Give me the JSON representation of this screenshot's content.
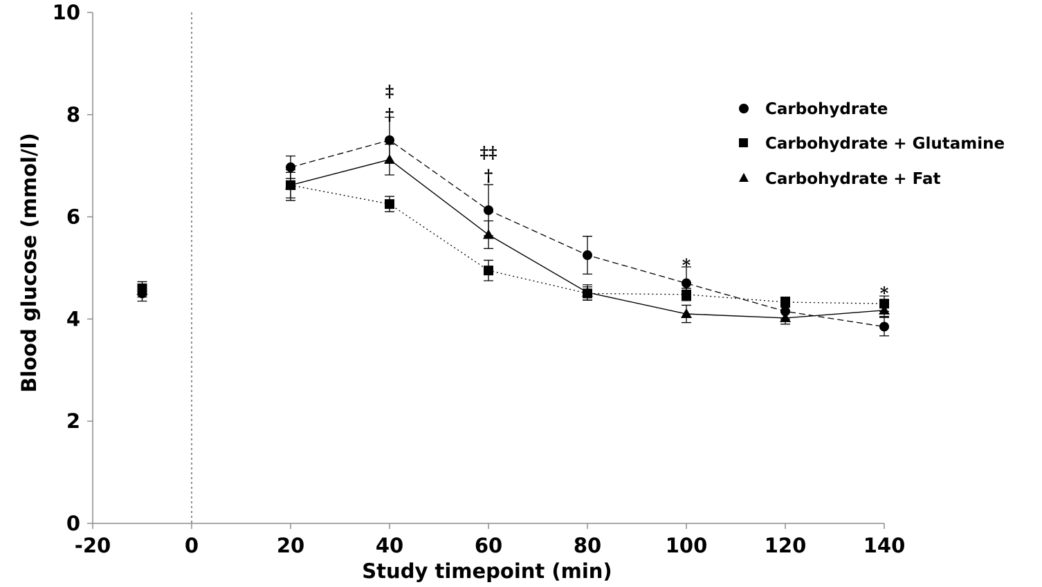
{
  "chart_data": {
    "type": "line",
    "xlabel": "Study timepoint (min)",
    "ylabel": "Blood glucose (mmol/l)",
    "xlim": [
      -20,
      140
    ],
    "ylim": [
      0,
      10
    ],
    "xticks": [
      -20,
      0,
      20,
      40,
      60,
      80,
      100,
      120,
      140
    ],
    "yticks": [
      0,
      2,
      4,
      6,
      8,
      10
    ],
    "reference_line_x": 0,
    "grid": false,
    "legend_position": "top-right",
    "series": [
      {
        "name": "Carbohydrate",
        "marker": "circle",
        "line": "dashed",
        "points": [
          {
            "x": -10,
            "y": 4.5,
            "err": 0.15,
            "connected": false
          },
          {
            "x": 20,
            "y": 6.97,
            "err": 0.22,
            "connected": true
          },
          {
            "x": 40,
            "y": 7.5,
            "err": 0.45,
            "connected": true
          },
          {
            "x": 60,
            "y": 6.13,
            "err": 0.5,
            "connected": true
          },
          {
            "x": 80,
            "y": 5.25,
            "err": 0.37,
            "connected": true
          },
          {
            "x": 100,
            "y": 4.7,
            "err": 0.32,
            "connected": true
          },
          {
            "x": 120,
            "y": 4.15,
            "err": 0.15,
            "connected": true
          },
          {
            "x": 140,
            "y": 3.85,
            "err": 0.18,
            "connected": true
          }
        ]
      },
      {
        "name": "Carbohydrate + Glutamine",
        "marker": "square",
        "line": "dotted",
        "points": [
          {
            "x": -10,
            "y": 4.6,
            "err": 0.13,
            "connected": false
          },
          {
            "x": 20,
            "y": 6.62,
            "err": 0.25,
            "connected": true
          },
          {
            "x": 40,
            "y": 6.25,
            "err": 0.15,
            "connected": true
          },
          {
            "x": 60,
            "y": 4.95,
            "err": 0.2,
            "connected": true
          },
          {
            "x": 80,
            "y": 4.5,
            "err": 0.13,
            "connected": true
          },
          {
            "x": 100,
            "y": 4.48,
            "err": 0.12,
            "connected": true
          },
          {
            "x": 120,
            "y": 4.33,
            "err": 0.1,
            "connected": true
          },
          {
            "x": 140,
            "y": 4.3,
            "err": 0.15,
            "connected": true
          }
        ]
      },
      {
        "name": "Carbohydrate + Fat",
        "marker": "triangle",
        "line": "solid",
        "points": [
          {
            "x": -10,
            "y": 4.55,
            "err": 0.12,
            "connected": false
          },
          {
            "x": 20,
            "y": 6.62,
            "err": 0.3,
            "connected": true
          },
          {
            "x": 40,
            "y": 7.12,
            "err": 0.3,
            "connected": true
          },
          {
            "x": 60,
            "y": 5.65,
            "err": 0.27,
            "connected": true
          },
          {
            "x": 80,
            "y": 4.52,
            "err": 0.15,
            "connected": true
          },
          {
            "x": 100,
            "y": 4.1,
            "err": 0.17,
            "connected": true
          },
          {
            "x": 120,
            "y": 4.02,
            "err": 0.12,
            "connected": true
          },
          {
            "x": 140,
            "y": 4.17,
            "err": 0.12,
            "connected": true
          }
        ]
      }
    ],
    "annotations": [
      {
        "x": 40,
        "y": 8.45,
        "text": "‡"
      },
      {
        "x": 40,
        "y": 8.0,
        "text": "†"
      },
      {
        "x": 60,
        "y": 7.25,
        "text": "‡‡"
      },
      {
        "x": 60,
        "y": 6.8,
        "text": "†"
      },
      {
        "x": 100,
        "y": 5.05,
        "text": "*"
      },
      {
        "x": 140,
        "y": 4.5,
        "text": "*"
      }
    ]
  }
}
